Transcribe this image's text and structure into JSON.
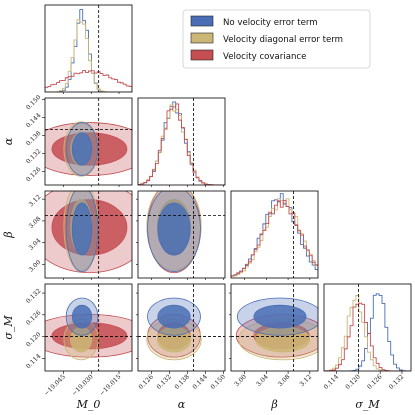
{
  "chart_data": {
    "type": "corner",
    "parameters": [
      {
        "key": "M0",
        "label": "M_0",
        "ticks": [
          "−19.045",
          "−19.030",
          "−19.015"
        ],
        "range": [
          -19.055,
          -19.008
        ]
      },
      {
        "key": "alpha",
        "label": "α",
        "ticks": [
          "0.126",
          "0.132",
          "0.138",
          "0.144",
          "0.150"
        ],
        "range": [
          0.1215,
          0.1505
        ]
      },
      {
        "key": "beta",
        "label": "β",
        "ticks": [
          "3.00",
          "3.04",
          "3.08",
          "3.12"
        ],
        "range": [
          2.975,
          3.135
        ]
      },
      {
        "key": "sigmaM",
        "label": "σ_M",
        "ticks": [
          "0.114",
          "0.120",
          "0.126",
          "0.132"
        ],
        "range": [
          0.1105,
          0.1345
        ]
      }
    ],
    "truth": {
      "M0": -19.026,
      "alpha": 0.14,
      "beta": 3.09,
      "sigmaM": 0.12
    },
    "series": [
      {
        "name": "No velocity error term",
        "color": "#4a6eb5",
        "mean": {
          "M0": -19.035,
          "alpha": 0.1335,
          "beta": 3.065,
          "sigmaM": 0.1255
        },
        "sd": {
          "M0": 0.0035,
          "alpha": 0.0036,
          "beta": 0.032,
          "sigmaM": 0.0021
        }
      },
      {
        "name": "Velocity diagonal error term",
        "color": "#cbb675",
        "mean": {
          "M0": -19.0355,
          "alpha": 0.1335,
          "beta": 3.07,
          "sigmaM": 0.1192
        },
        "sd": {
          "M0": 0.0038,
          "alpha": 0.0037,
          "beta": 0.033,
          "sigmaM": 0.0023
        }
      },
      {
        "name": "Velocity covariance",
        "color": "#c44e52",
        "mean": {
          "M0": -19.031,
          "alpha": 0.1335,
          "beta": 3.068,
          "sigmaM": 0.1202
        },
        "sd": {
          "M0": 0.0135,
          "alpha": 0.0036,
          "beta": 0.034,
          "sigmaM": 0.0024
        }
      }
    ],
    "legend_placement": "top-right"
  }
}
